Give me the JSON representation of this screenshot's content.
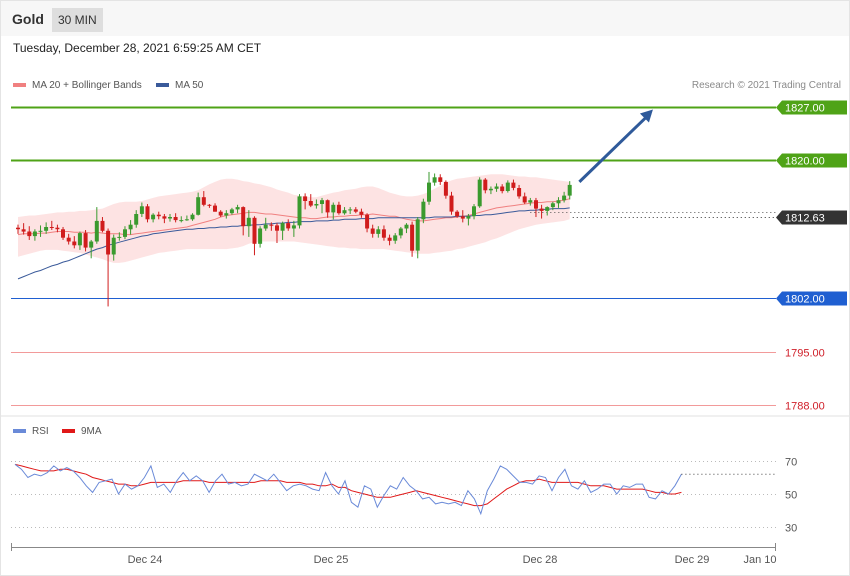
{
  "header": {
    "instrument": "Gold",
    "timeframe": "30 MIN"
  },
  "timestamp": "Tuesday, December 28, 2021 6:59:25 AM CET",
  "legend": {
    "ma20": "MA 20 + Bollinger Bands",
    "ma50": "MA 50",
    "copyright": "Research © 2021 Trading Central"
  },
  "rsi_legend": {
    "rsi": "RSI",
    "ma9": "9MA"
  },
  "colors": {
    "up": "#3a9a2e",
    "down": "#d01c1c",
    "ma20": "#f08080",
    "ma50": "#3a5a9a",
    "band": "#fde3e3",
    "resistance": "#4fa317",
    "support": "#1f5fd1",
    "lower": "#f29a9a",
    "current": "#333333",
    "arrow": "#2f5a9a",
    "rsi": "#6a8ad8",
    "rsima": "#e01818"
  },
  "chart_data": [
    {
      "type": "candlestick",
      "ylim": [
        1787,
        1831
      ],
      "x_labels": [
        "Dec 24",
        "Dec 25",
        "Dec 28",
        "Dec 29",
        "Jan 10"
      ],
      "candles": [
        [
          1811.2,
          1811.6,
          1810.4,
          1811.0
        ],
        [
          1811.0,
          1811.8,
          1810.3,
          1810.7
        ],
        [
          1810.7,
          1811.4,
          1809.6,
          1810.1
        ],
        [
          1810.1,
          1811.0,
          1809.5,
          1810.7
        ],
        [
          1810.7,
          1811.5,
          1810.0,
          1810.8
        ],
        [
          1810.8,
          1811.9,
          1810.4,
          1811.3
        ],
        [
          1811.3,
          1812.1,
          1810.9,
          1811.2
        ],
        [
          1811.2,
          1811.6,
          1810.6,
          1811.0
        ],
        [
          1811.0,
          1811.3,
          1809.6,
          1809.9
        ],
        [
          1809.9,
          1810.4,
          1809.0,
          1809.4
        ],
        [
          1809.4,
          1810.1,
          1808.5,
          1808.9
        ],
        [
          1808.9,
          1810.7,
          1808.3,
          1810.5
        ],
        [
          1810.5,
          1810.9,
          1808.1,
          1808.6
        ],
        [
          1808.6,
          1809.6,
          1807.2,
          1809.4
        ],
        [
          1809.4,
          1813.9,
          1809.1,
          1812.1
        ],
        [
          1812.1,
          1812.6,
          1810.6,
          1810.8
        ],
        [
          1810.8,
          1811.1,
          1800.9,
          1807.7
        ],
        [
          1807.7,
          1810.3,
          1806.9,
          1809.9
        ],
        [
          1809.9,
          1810.6,
          1809.5,
          1810.0
        ],
        [
          1810.0,
          1811.4,
          1809.7,
          1811.0
        ],
        [
          1811.0,
          1812.2,
          1810.3,
          1811.6
        ],
        [
          1811.6,
          1813.5,
          1811.2,
          1813.0
        ],
        [
          1813.0,
          1814.5,
          1812.6,
          1814.0
        ],
        [
          1814.0,
          1814.3,
          1811.9,
          1812.3
        ],
        [
          1812.3,
          1813.1,
          1811.9,
          1812.9
        ],
        [
          1812.9,
          1813.3,
          1812.3,
          1812.7
        ],
        [
          1812.7,
          1813.0,
          1811.8,
          1812.4
        ],
        [
          1812.4,
          1813.0,
          1812.0,
          1812.6
        ],
        [
          1812.6,
          1813.1,
          1811.9,
          1812.2
        ],
        [
          1812.2,
          1812.7,
          1811.9,
          1812.2
        ],
        [
          1812.2,
          1812.8,
          1812.1,
          1812.3
        ],
        [
          1812.3,
          1813.1,
          1812.1,
          1812.9
        ],
        [
          1812.9,
          1815.8,
          1812.8,
          1815.2
        ],
        [
          1815.2,
          1816.0,
          1814.0,
          1814.2
        ],
        [
          1814.2,
          1814.3,
          1813.8,
          1814.1
        ],
        [
          1814.1,
          1814.4,
          1813.3,
          1813.3
        ],
        [
          1813.3,
          1813.5,
          1812.6,
          1812.8
        ],
        [
          1812.8,
          1813.5,
          1812.4,
          1813.1
        ],
        [
          1813.1,
          1813.8,
          1812.9,
          1813.6
        ],
        [
          1813.6,
          1814.2,
          1813.1,
          1813.9
        ],
        [
          1813.9,
          1814.0,
          1810.2,
          1811.4
        ],
        [
          1811.4,
          1813.5,
          1810.0,
          1812.5
        ],
        [
          1812.5,
          1812.7,
          1807.6,
          1809.1
        ],
        [
          1809.1,
          1811.4,
          1808.6,
          1811.1
        ],
        [
          1811.1,
          1812.5,
          1810.8,
          1811.6
        ],
        [
          1811.6,
          1811.9,
          1810.8,
          1811.5
        ],
        [
          1811.5,
          1811.8,
          1809.2,
          1810.8
        ],
        [
          1810.8,
          1812.0,
          1809.6,
          1811.8
        ],
        [
          1811.8,
          1812.3,
          1810.8,
          1811.1
        ],
        [
          1811.1,
          1812.1,
          1810.0,
          1811.5
        ],
        [
          1811.5,
          1815.6,
          1811.1,
          1815.3
        ],
        [
          1815.3,
          1815.7,
          1813.6,
          1814.7
        ],
        [
          1814.7,
          1815.6,
          1813.9,
          1814.1
        ],
        [
          1814.1,
          1814.9,
          1813.7,
          1814.3
        ],
        [
          1814.3,
          1815.1,
          1813.1,
          1814.8
        ],
        [
          1814.8,
          1814.9,
          1812.5,
          1813.2
        ],
        [
          1813.2,
          1814.5,
          1812.3,
          1814.2
        ],
        [
          1814.2,
          1814.6,
          1812.9,
          1813.1
        ],
        [
          1813.1,
          1813.9,
          1812.9,
          1813.5
        ],
        [
          1813.5,
          1813.9,
          1813.0,
          1813.6
        ],
        [
          1813.6,
          1813.9,
          1813.1,
          1813.3
        ],
        [
          1813.3,
          1813.7,
          1812.5,
          1812.9
        ],
        [
          1812.9,
          1813.1,
          1810.6,
          1811.1
        ],
        [
          1811.1,
          1811.6,
          1809.9,
          1810.4
        ],
        [
          1810.4,
          1811.4,
          1809.9,
          1811.0
        ],
        [
          1811.0,
          1811.5,
          1809.5,
          1809.9
        ],
        [
          1809.9,
          1810.3,
          1808.9,
          1809.5
        ],
        [
          1809.5,
          1810.5,
          1809.1,
          1810.2
        ],
        [
          1810.2,
          1811.3,
          1809.8,
          1811.1
        ],
        [
          1811.1,
          1811.8,
          1810.5,
          1811.6
        ],
        [
          1811.6,
          1812.0,
          1807.4,
          1808.2
        ],
        [
          1808.2,
          1812.6,
          1807.2,
          1812.3
        ],
        [
          1812.3,
          1815.0,
          1811.8,
          1814.6
        ],
        [
          1814.6,
          1818.5,
          1814.2,
          1817.1
        ],
        [
          1817.1,
          1818.3,
          1816.7,
          1817.8
        ],
        [
          1817.8,
          1818.2,
          1816.8,
          1817.2
        ],
        [
          1817.2,
          1817.4,
          1815.0,
          1815.4
        ],
        [
          1815.4,
          1815.9,
          1812.9,
          1813.3
        ],
        [
          1813.3,
          1813.5,
          1812.5,
          1812.7
        ],
        [
          1812.7,
          1813.5,
          1811.9,
          1812.4
        ],
        [
          1812.4,
          1813.0,
          1811.5,
          1812.7
        ],
        [
          1812.7,
          1814.3,
          1812.3,
          1814.0
        ],
        [
          1814.0,
          1817.8,
          1813.8,
          1817.5
        ],
        [
          1817.5,
          1817.7,
          1815.7,
          1816.1
        ],
        [
          1816.1,
          1816.6,
          1815.6,
          1816.3
        ],
        [
          1816.3,
          1817.0,
          1815.9,
          1816.6
        ],
        [
          1816.6,
          1816.9,
          1815.7,
          1816.0
        ],
        [
          1816.0,
          1817.4,
          1815.8,
          1817.1
        ],
        [
          1817.1,
          1817.5,
          1816.1,
          1816.4
        ],
        [
          1816.4,
          1816.8,
          1815.0,
          1815.3
        ],
        [
          1815.3,
          1815.8,
          1814.3,
          1814.5
        ],
        [
          1814.5,
          1815.1,
          1814.1,
          1814.8
        ],
        [
          1814.8,
          1815.1,
          1812.6,
          1813.7
        ],
        [
          1813.7,
          1814.2,
          1812.4,
          1813.4
        ],
        [
          1813.4,
          1814.0,
          1812.8,
          1813.9
        ],
        [
          1813.9,
          1814.6,
          1813.5,
          1814.4
        ],
        [
          1814.4,
          1815.2,
          1813.8,
          1814.8
        ],
        [
          1814.8,
          1815.9,
          1814.5,
          1815.4
        ],
        [
          1815.4,
          1817.3,
          1814.9,
          1816.8
        ]
      ],
      "ma20": [
        1810.3,
        1810.4,
        1810.4,
        1810.4,
        1810.5,
        1810.5,
        1810.6,
        1810.7,
        1810.7,
        1810.7,
        1810.6,
        1810.6,
        1810.6,
        1810.5,
        1810.6,
        1810.5,
        1810.4,
        1810.4,
        1810.4,
        1810.3,
        1810.3,
        1810.4,
        1810.5,
        1810.6,
        1810.7,
        1810.8,
        1810.9,
        1811.0,
        1811.1,
        1811.2,
        1811.3,
        1811.5,
        1811.7,
        1811.9,
        1812.1,
        1812.3,
        1812.6,
        1812.8,
        1812.9,
        1813.0,
        1813.1,
        1813.2,
        1813.2,
        1813.1,
        1813.0,
        1813.0,
        1812.9,
        1812.8,
        1812.7,
        1812.6,
        1812.5,
        1812.5,
        1812.4,
        1812.4,
        1812.5,
        1812.6,
        1812.6,
        1812.7,
        1812.7,
        1812.8,
        1812.8,
        1812.9,
        1812.9,
        1813.0,
        1812.9,
        1812.8,
        1812.7,
        1812.7,
        1812.5,
        1812.3,
        1812.2,
        1812.1,
        1812.1,
        1812.2,
        1812.3,
        1812.4,
        1812.5,
        1812.5,
        1812.6,
        1812.7,
        1812.8,
        1813.0,
        1813.2,
        1813.4,
        1813.6,
        1813.8,
        1813.9,
        1814.0,
        1814.1,
        1814.2,
        1814.3,
        1814.4,
        1814.5,
        1814.5,
        1814.6,
        1814.6,
        1814.7,
        1814.8,
        1815.0
      ],
      "bb_upper": [
        1812.6,
        1812.7,
        1812.8,
        1812.8,
        1812.9,
        1813.0,
        1813.1,
        1813.2,
        1813.2,
        1813.3,
        1813.3,
        1813.4,
        1813.4,
        1813.5,
        1813.6,
        1813.7,
        1814.0,
        1814.3,
        1814.5,
        1814.6,
        1814.6,
        1814.6,
        1814.7,
        1814.9,
        1815.1,
        1815.3,
        1815.4,
        1815.5,
        1815.6,
        1815.7,
        1815.8,
        1815.9,
        1816.1,
        1816.5,
        1816.9,
        1817.2,
        1817.5,
        1817.6,
        1817.6,
        1817.5,
        1817.3,
        1817.2,
        1817.0,
        1816.9,
        1816.7,
        1816.5,
        1816.2,
        1816.0,
        1815.8,
        1815.5,
        1815.4,
        1815.3,
        1815.2,
        1815.2,
        1815.4,
        1815.6,
        1815.8,
        1815.9,
        1816.1,
        1816.2,
        1816.3,
        1816.5,
        1816.6,
        1816.6,
        1816.4,
        1816.1,
        1815.8,
        1815.6,
        1815.4,
        1815.3,
        1815.3,
        1815.4,
        1815.6,
        1815.9,
        1816.3,
        1816.7,
        1817.1,
        1817.4,
        1817.6,
        1817.7,
        1817.8,
        1817.9,
        1818.0,
        1818.1,
        1818.2,
        1818.2,
        1818.2,
        1818.1,
        1818.0,
        1817.9,
        1817.9,
        1817.8,
        1817.8,
        1817.7,
        1817.6,
        1817.5,
        1817.4,
        1817.3,
        1817.2
      ],
      "bb_lower": [
        1807.4,
        1807.6,
        1807.8,
        1808.0,
        1808.2,
        1808.3,
        1808.3,
        1808.3,
        1808.2,
        1808.1,
        1808.0,
        1807.9,
        1807.7,
        1807.5,
        1807.3,
        1807.1,
        1806.8,
        1806.6,
        1806.6,
        1806.7,
        1806.9,
        1807.1,
        1807.3,
        1807.5,
        1807.7,
        1807.9,
        1808.0,
        1808.1,
        1808.2,
        1808.3,
        1808.4,
        1808.4,
        1808.4,
        1808.4,
        1808.4,
        1808.4,
        1808.4,
        1808.4,
        1808.5,
        1808.6,
        1808.8,
        1809.1,
        1809.3,
        1809.4,
        1809.4,
        1809.4,
        1809.4,
        1809.4,
        1809.4,
        1809.4,
        1809.3,
        1809.2,
        1809.1,
        1809.0,
        1808.9,
        1808.8,
        1808.7,
        1808.6,
        1808.6,
        1808.5,
        1808.5,
        1808.4,
        1808.4,
        1808.4,
        1808.4,
        1808.4,
        1808.3,
        1808.2,
        1808.1,
        1808.0,
        1807.9,
        1807.8,
        1807.8,
        1807.8,
        1807.9,
        1808.0,
        1808.1,
        1808.2,
        1808.4,
        1808.5,
        1808.7,
        1808.9,
        1809.1,
        1809.3,
        1809.6,
        1809.8,
        1810.1,
        1810.4,
        1810.7,
        1811.0,
        1811.2,
        1811.4,
        1811.6,
        1811.7,
        1811.8,
        1811.9,
        1812.0,
        1812.1,
        1812.3
      ],
      "ma50": [
        1804.5,
        1804.8,
        1805.1,
        1805.4,
        1805.6,
        1805.9,
        1806.2,
        1806.4,
        1806.7,
        1806.9,
        1807.2,
        1807.5,
        1807.8,
        1808.1,
        1808.4,
        1808.6,
        1808.9,
        1809.1,
        1809.3,
        1809.5,
        1809.7,
        1809.9,
        1810.1,
        1810.2,
        1810.4,
        1810.5,
        1810.6,
        1810.7,
        1810.8,
        1810.9,
        1811.0,
        1811.0,
        1811.1,
        1811.1,
        1811.2,
        1811.2,
        1811.3,
        1811.3,
        1811.4,
        1811.4,
        1811.5,
        1811.5,
        1811.6,
        1811.6,
        1811.7,
        1811.7,
        1811.8,
        1811.8,
        1811.9,
        1811.9,
        1812.0,
        1812.0,
        1812.0,
        1812.1,
        1812.1,
        1812.1,
        1812.2,
        1812.2,
        1812.3,
        1812.3,
        1812.3,
        1812.4,
        1812.4,
        1812.4,
        1812.5,
        1812.5,
        1812.5,
        1812.5,
        1812.5,
        1812.5,
        1812.5,
        1812.5,
        1812.5,
        1812.5,
        1812.6,
        1812.6,
        1812.6,
        1812.6,
        1812.7,
        1812.7,
        1812.7,
        1812.8,
        1812.8,
        1812.9,
        1812.9,
        1813.0,
        1813.1,
        1813.2,
        1813.3,
        1813.4,
        1813.4,
        1813.5,
        1813.5,
        1813.6,
        1813.6,
        1813.7,
        1813.7,
        1813.7,
        1813.8
      ],
      "current_price": 1812.63,
      "levels": [
        {
          "value": 1827.0,
          "label": "1827.00",
          "kind": "resistance"
        },
        {
          "value": 1820.0,
          "label": "1820.00",
          "kind": "resistance"
        },
        {
          "value": 1812.63,
          "label": "1812.63",
          "kind": "current"
        },
        {
          "value": 1802.0,
          "label": "1802.00",
          "kind": "support"
        },
        {
          "value": 1795.0,
          "label": "1795.00",
          "kind": "lower"
        },
        {
          "value": 1788.0,
          "label": "1788.00",
          "kind": "lower"
        }
      ],
      "arrow": {
        "from_index": 99,
        "from_value": 1817.2,
        "to_index": 111,
        "to_value": 1826.8
      }
    },
    {
      "type": "line",
      "name": "RSI",
      "ylim": [
        20,
        80
      ],
      "y_ticks": [
        70,
        50,
        30
      ],
      "rsi": [
        68,
        65,
        60,
        62,
        61,
        63,
        67,
        64,
        66,
        64,
        60,
        55,
        51,
        57,
        58,
        59,
        50,
        56,
        53,
        55,
        60,
        67,
        54,
        56,
        51,
        58,
        63,
        58,
        61,
        58,
        51,
        58,
        62,
        56,
        57,
        55,
        56,
        62,
        60,
        58,
        62,
        57,
        52,
        55,
        56,
        55,
        53,
        52,
        63,
        55,
        50,
        58,
        45,
        42,
        55,
        53,
        42,
        49,
        55,
        53,
        60,
        55,
        52,
        47,
        48,
        44,
        45,
        44,
        45,
        43,
        52,
        47,
        38,
        52,
        59,
        67,
        65,
        61,
        57,
        57,
        56,
        61,
        60,
        52,
        60,
        65,
        55,
        53,
        58,
        51,
        53,
        56,
        56,
        50,
        55,
        54,
        56,
        56,
        48,
        47,
        52,
        50,
        55,
        62
      ],
      "ma9": [
        68,
        67,
        66,
        65,
        64,
        64,
        64,
        65,
        65,
        64,
        63,
        62,
        60,
        59,
        58,
        57,
        56,
        56,
        55,
        55,
        56,
        57,
        57,
        57,
        57,
        57,
        58,
        58,
        58,
        58,
        57,
        57,
        57,
        57,
        57,
        57,
        57,
        57,
        58,
        58,
        58,
        58,
        57,
        57,
        57,
        56,
        56,
        55,
        55,
        56,
        54,
        54,
        52,
        51,
        50,
        49,
        48,
        48,
        48,
        49,
        50,
        51,
        52,
        51,
        50,
        49,
        48,
        47,
        46,
        45,
        44,
        43,
        43,
        44,
        47,
        50,
        53,
        55,
        57,
        58,
        58,
        59,
        58,
        57,
        57,
        57,
        57,
        57,
        56,
        55,
        55,
        55,
        54,
        53,
        53,
        53,
        53,
        53,
        52,
        51,
        51,
        50,
        50,
        51
      ]
    }
  ]
}
